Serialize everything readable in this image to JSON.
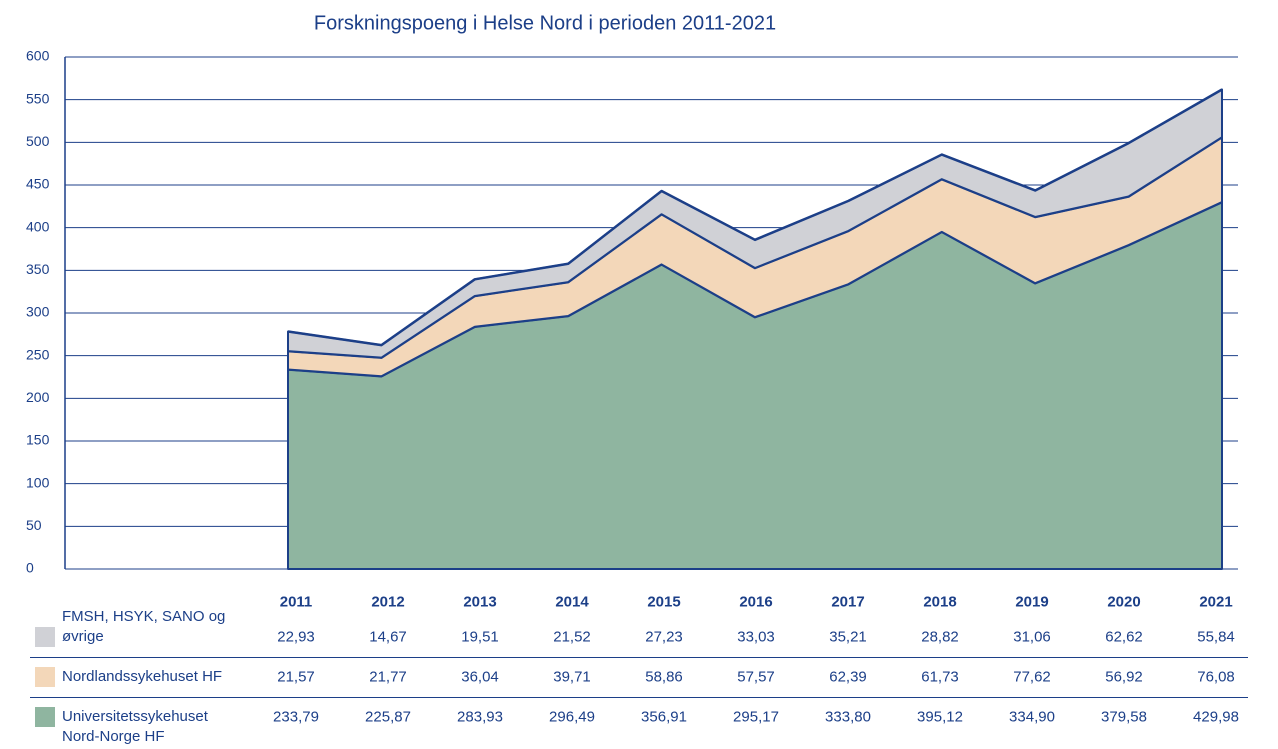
{
  "chart_data": {
    "type": "stacked-area",
    "title": "Forskningspoeng i Helse Nord i perioden 2011-2021",
    "categories": [
      "2011",
      "2012",
      "2013",
      "2014",
      "2015",
      "2016",
      "2017",
      "2018",
      "2019",
      "2020",
      "2021"
    ],
    "ylim": [
      0,
      600
    ],
    "yticks": [
      0,
      50,
      100,
      150,
      200,
      250,
      300,
      350,
      400,
      450,
      500,
      550,
      600
    ],
    "grid": true,
    "line_color": "#1c3f88",
    "series": [
      {
        "name": "FMSH, HSYK, SANO og øvrige",
        "color": "#d0d1d6",
        "values": [
          22.93,
          14.67,
          19.51,
          21.52,
          27.23,
          33.03,
          35.21,
          28.82,
          31.06,
          62.62,
          55.84
        ],
        "value_labels": [
          "22,93",
          "14,67",
          "19,51",
          "21,52",
          "27,23",
          "33,03",
          "35,21",
          "28,82",
          "31,06",
          "62,62",
          "55,84"
        ]
      },
      {
        "name": "Nordlandssykehuset HF",
        "color": "#f3d7b9",
        "values": [
          21.57,
          21.77,
          36.04,
          39.71,
          58.86,
          57.57,
          62.39,
          61.73,
          77.62,
          56.92,
          76.08
        ],
        "value_labels": [
          "21,57",
          "21,77",
          "36,04",
          "39,71",
          "58,86",
          "57,57",
          "62,39",
          "61,73",
          "77,62",
          "56,92",
          "76,08"
        ]
      },
      {
        "name": "Universitetssykehuset Nord-Norge HF",
        "color": "#8fb5a0",
        "values": [
          233.79,
          225.87,
          283.93,
          296.49,
          356.91,
          295.17,
          333.8,
          395.12,
          334.9,
          379.58,
          429.98
        ],
        "value_labels": [
          "233,79",
          "225,87",
          "283,93",
          "296,49",
          "356,91",
          "295,17",
          "333,80",
          "395,12",
          "334,90",
          "379,58",
          "429,98"
        ]
      }
    ]
  }
}
